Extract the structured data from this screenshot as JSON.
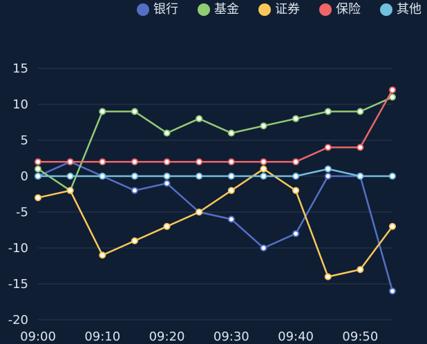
{
  "chart_data": {
    "type": "line",
    "x": [
      "09:00",
      "09:05",
      "09:10",
      "09:15",
      "09:20",
      "09:25",
      "09:30",
      "09:35",
      "09:40",
      "09:45",
      "09:50",
      "09:55"
    ],
    "x_tick_labels": [
      "09:00",
      "09:10",
      "09:20",
      "09:30",
      "09:40",
      "09:50"
    ],
    "ylim": [
      -20,
      15
    ],
    "y_ticks": [
      15,
      10,
      5,
      0,
      -5,
      -10,
      -15,
      -20
    ],
    "grid": true,
    "legend_position": "top-right",
    "series": [
      {
        "name": "银行",
        "color": "#5470c6",
        "values": [
          0,
          2,
          0,
          -2,
          -1,
          -5,
          -6,
          -10,
          -8,
          0,
          0,
          -16
        ]
      },
      {
        "name": "基金",
        "color": "#91cc75",
        "values": [
          1,
          -2,
          9,
          9,
          6,
          8,
          6,
          7,
          8,
          9,
          9,
          11
        ]
      },
      {
        "name": "证券",
        "color": "#fac858",
        "values": [
          -3,
          -2,
          -11,
          -9,
          -7,
          -5,
          -2,
          1,
          -2,
          -14,
          -13,
          -7
        ]
      },
      {
        "name": "保险",
        "color": "#ee6666",
        "values": [
          2,
          2,
          2,
          2,
          2,
          2,
          2,
          2,
          2,
          4,
          4,
          12
        ]
      },
      {
        "name": "其他",
        "color": "#73c0de",
        "values": [
          0,
          0,
          0,
          0,
          0,
          0,
          0,
          0,
          0,
          1,
          0,
          0
        ]
      }
    ]
  },
  "colors": {
    "background": "#101e34",
    "grid": "#2c3a52",
    "axis_text": "#dde4ee"
  }
}
